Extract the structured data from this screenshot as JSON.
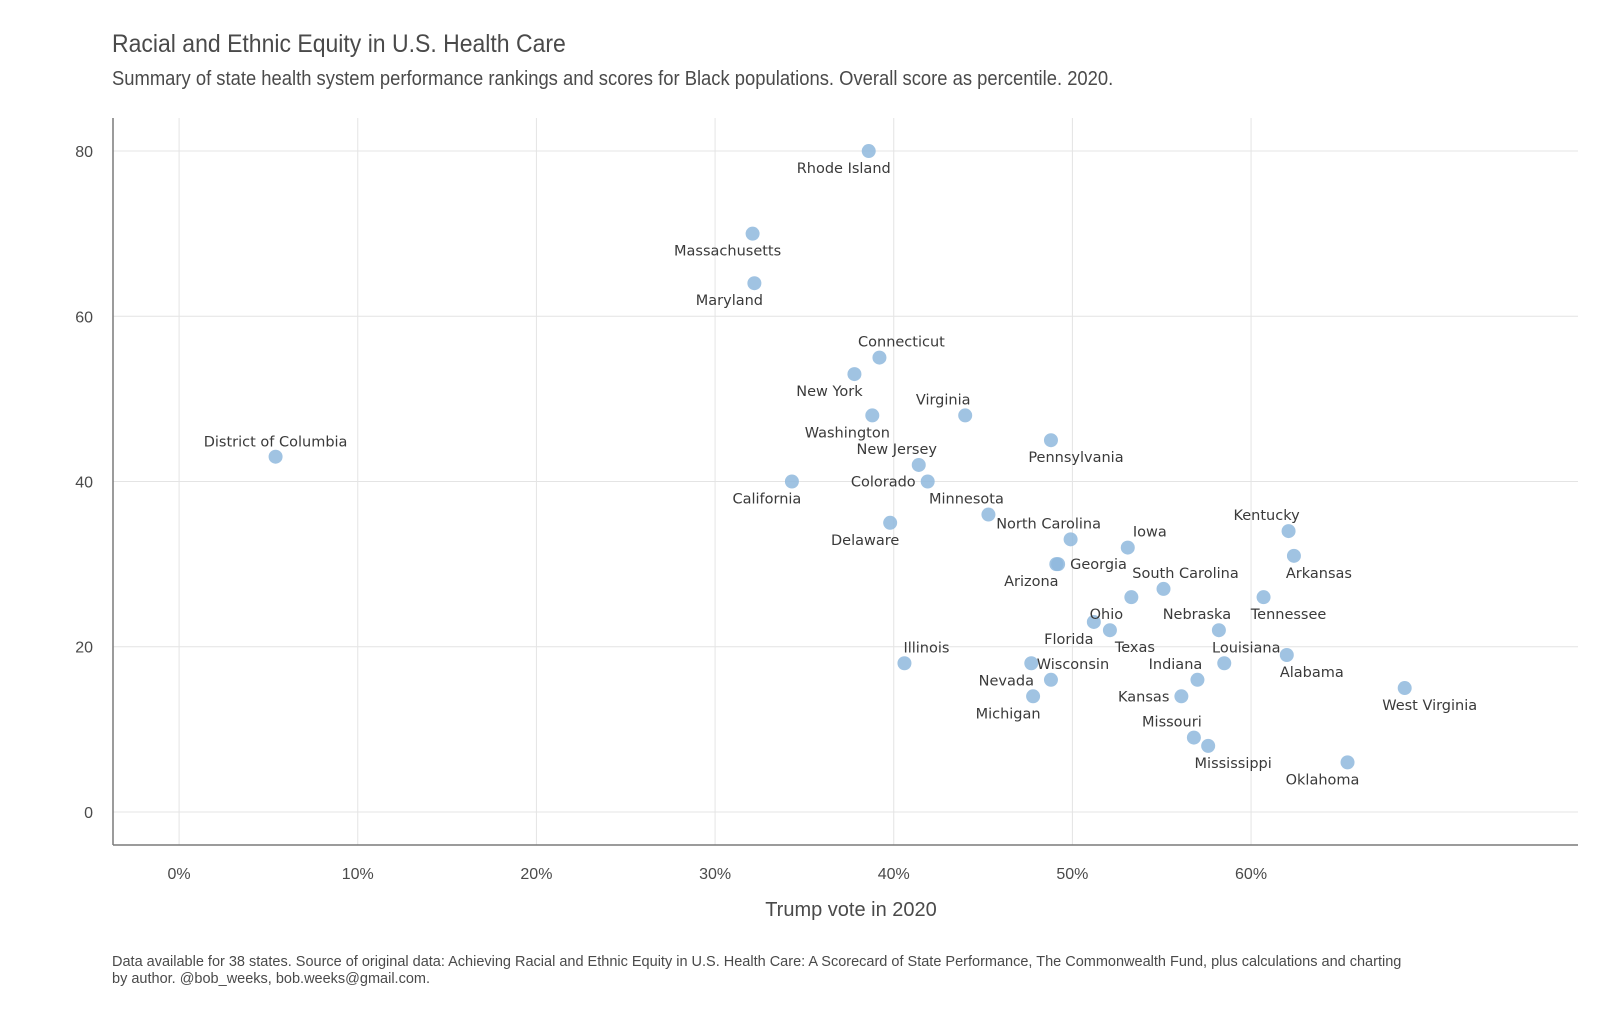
{
  "header": {
    "title": "Racial and Ethnic Equity in U.S. Health Care",
    "subtitle": "Summary of state health system performance rankings and scores for Black populations. Overall score as percentile. 2020."
  },
  "footer": {
    "caption": "Data available for 38 states. Source of original data: Achieving Racial and Ethnic Equity in U.S. Health Care: A Scorecard of State Performance, The Commonwealth Fund, plus calculations and charting by author. @bob_weeks, bob.weeks@gmail.com."
  },
  "colors": {
    "point": "#8fb8dd",
    "grid": "#e4e4e4",
    "axis": "#7a7a7a"
  },
  "chart_data": {
    "type": "scatter",
    "xlabel": "Trump vote in 2020",
    "ylabel": "",
    "xlim": [
      -3.7,
      78.3
    ],
    "ylim": [
      -4,
      84
    ],
    "grid": true,
    "x_ticks": [
      0,
      10,
      20,
      30,
      40,
      50,
      60
    ],
    "x_tick_labels": [
      "0%",
      "10%",
      "20%",
      "30%",
      "40%",
      "50%",
      "60%"
    ],
    "y_ticks": [
      0,
      20,
      40,
      60,
      80
    ],
    "y_tick_labels": [
      "0",
      "20",
      "40",
      "60",
      "80"
    ],
    "points": [
      {
        "label": "District of Columbia",
        "x": 5.4,
        "y": 43,
        "pos": "above"
      },
      {
        "label": "Rhode Island",
        "x": 38.6,
        "y": 80,
        "pos": "below-left"
      },
      {
        "label": "Massachusetts",
        "x": 32.1,
        "y": 70,
        "pos": "below-left"
      },
      {
        "label": "Maryland",
        "x": 32.2,
        "y": 64,
        "pos": "below-left"
      },
      {
        "label": "Connecticut",
        "x": 39.2,
        "y": 55,
        "pos": "above-right"
      },
      {
        "label": "New York",
        "x": 37.8,
        "y": 53,
        "pos": "below-left"
      },
      {
        "label": "Washington",
        "x": 38.8,
        "y": 48,
        "pos": "below-left"
      },
      {
        "label": "Virginia",
        "x": 44.0,
        "y": 48,
        "pos": "above-left"
      },
      {
        "label": "Pennsylvania",
        "x": 48.8,
        "y": 45,
        "pos": "below-right"
      },
      {
        "label": "New Jersey",
        "x": 41.4,
        "y": 42,
        "pos": "above-left"
      },
      {
        "label": "California",
        "x": 34.3,
        "y": 40,
        "pos": "below-left"
      },
      {
        "label": "Colorado",
        "x": 41.9,
        "y": 40,
        "pos": "left"
      },
      {
        "label": "Minnesota",
        "x": 45.3,
        "y": 36,
        "pos": "above-left"
      },
      {
        "label": "Delaware",
        "x": 39.8,
        "y": 35,
        "pos": "below-left"
      },
      {
        "label": "North Carolina",
        "x": 49.9,
        "y": 33,
        "pos": "above-left"
      },
      {
        "label": "Iowa",
        "x": 53.1,
        "y": 32,
        "pos": "above-right"
      },
      {
        "label": "Kentucky",
        "x": 62.1,
        "y": 34,
        "pos": "above-left"
      },
      {
        "label": "Arkansas",
        "x": 62.4,
        "y": 31,
        "pos": "below-right"
      },
      {
        "label": "Georgia",
        "x": 49.2,
        "y": 30,
        "pos": "right"
      },
      {
        "label": "Arizona",
        "x": 49.1,
        "y": 30,
        "pos": "below-left"
      },
      {
        "label": "South Carolina",
        "x": 55.1,
        "y": 27,
        "pos": "above-right"
      },
      {
        "label": "Tennessee",
        "x": 60.7,
        "y": 26,
        "pos": "below-right"
      },
      {
        "label": "Ohio",
        "x": 53.3,
        "y": 26,
        "pos": "below-left"
      },
      {
        "label": "Florida",
        "x": 51.2,
        "y": 23,
        "pos": "below-left"
      },
      {
        "label": "Texas",
        "x": 52.1,
        "y": 22,
        "pos": "below-right"
      },
      {
        "label": "Nebraska",
        "x": 58.2,
        "y": 22,
        "pos": "above-left"
      },
      {
        "label": "Louisiana",
        "x": 58.5,
        "y": 18,
        "pos": "above-right"
      },
      {
        "label": "Alabama",
        "x": 62.0,
        "y": 19,
        "pos": "below-right"
      },
      {
        "label": "Illinois",
        "x": 40.6,
        "y": 18,
        "pos": "above-right"
      },
      {
        "label": "Wisconsin",
        "x": 48.8,
        "y": 16,
        "pos": "above-right"
      },
      {
        "label": "Nevada",
        "x": 47.7,
        "y": 18,
        "pos": "below-left"
      },
      {
        "label": "Indiana",
        "x": 57.0,
        "y": 16,
        "pos": "above-left"
      },
      {
        "label": "Michigan",
        "x": 47.8,
        "y": 14,
        "pos": "below-left"
      },
      {
        "label": "Kansas",
        "x": 56.1,
        "y": 14,
        "pos": "left"
      },
      {
        "label": "West Virginia",
        "x": 68.6,
        "y": 15,
        "pos": "below-right"
      },
      {
        "label": "Missouri",
        "x": 56.8,
        "y": 9,
        "pos": "above-left"
      },
      {
        "label": "Mississippi",
        "x": 57.6,
        "y": 8,
        "pos": "below-right"
      },
      {
        "label": "Oklahoma",
        "x": 65.4,
        "y": 6,
        "pos": "below-left"
      }
    ]
  }
}
